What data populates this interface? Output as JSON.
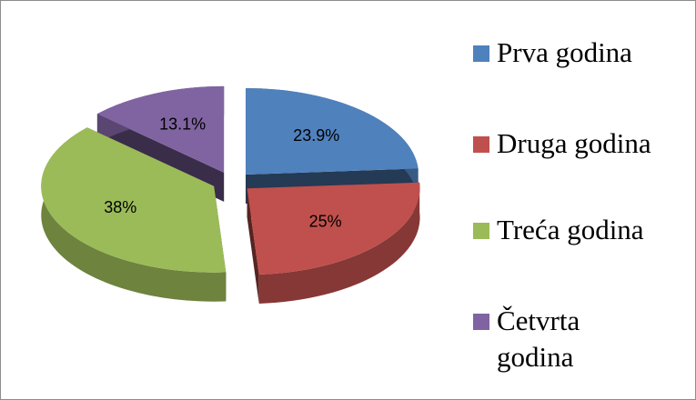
{
  "chart_data": {
    "type": "pie",
    "categories": [
      "Prva godina",
      "Druga godina",
      "Treća godina",
      "Četvrta godina"
    ],
    "values": [
      23.9,
      25,
      38,
      13.1
    ],
    "value_labels": [
      "23.9%",
      "25%",
      "38%",
      "13.1%"
    ],
    "colors": [
      "#4f81bd",
      "#c0504d",
      "#9bbb59",
      "#8064a2"
    ],
    "legend": "right"
  }
}
